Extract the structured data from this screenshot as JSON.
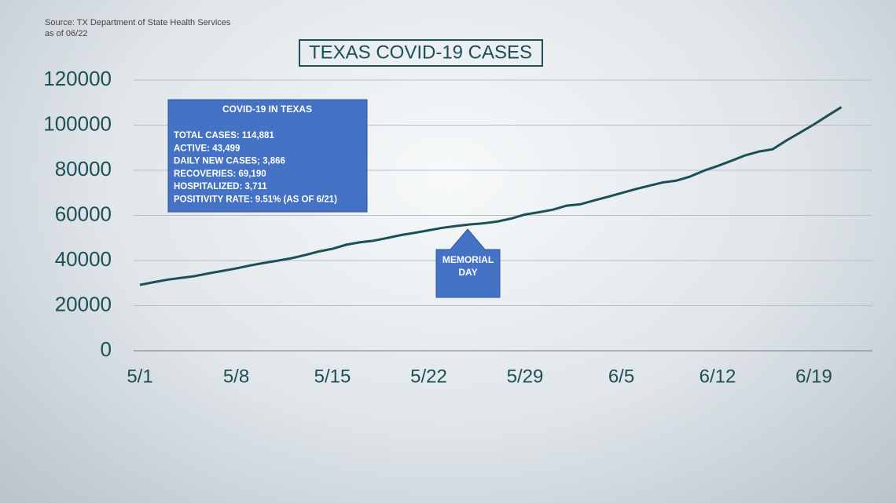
{
  "chart_data": {
    "type": "line",
    "source": "Source: TX Department of State Health Services",
    "as_of": "as of 06/22",
    "title": "TEXAS COVID-19 CASES",
    "categories": [
      "5/1",
      null,
      null,
      null,
      null,
      null,
      null,
      "5/8",
      null,
      null,
      null,
      null,
      null,
      null,
      "5/15",
      null,
      null,
      null,
      null,
      null,
      null,
      "5/22",
      null,
      null,
      null,
      null,
      null,
      null,
      "5/29",
      null,
      null,
      null,
      null,
      null,
      null,
      "6/5",
      null,
      null,
      null,
      null,
      null,
      null,
      "6/12",
      null,
      null,
      null,
      null,
      null,
      null,
      "6/19",
      null,
      null
    ],
    "series": [
      {
        "name": "Total cases",
        "color": "#1d4f57",
        "values": [
          29200,
          30400,
          31500,
          32300,
          33100,
          34300,
          35400,
          36500,
          37800,
          38900,
          39900,
          41000,
          42400,
          44000,
          45200,
          47000,
          48100,
          48800,
          50000,
          51300,
          52300,
          53400,
          54500,
          55300,
          56000,
          56500,
          57300,
          58600,
          60400,
          61400,
          62500,
          64300,
          64900,
          66600,
          68200,
          69900,
          71600,
          73100,
          74600,
          75400,
          77200,
          79800,
          81900,
          84200,
          86600,
          88300,
          89300,
          93200,
          96700,
          100300,
          104200,
          108000
        ]
      }
    ],
    "ylim": [
      0,
      120000
    ],
    "yticks": [
      0,
      20000,
      40000,
      60000,
      80000,
      100000,
      120000
    ],
    "grid": true,
    "info_box": {
      "title": "COVID-19 IN TEXAS",
      "lines": [
        "TOTAL CASES: 114,881",
        "ACTIVE: 43,499",
        "DAILY NEW CASES; 3,866",
        "RECOVERIES: 69,190",
        "HOSPITALIZED: 3,711",
        "POSITIVITY RATE:  9.51% (AS OF 6/21)"
      ]
    },
    "annotation": "MEMORIAL DAY"
  }
}
